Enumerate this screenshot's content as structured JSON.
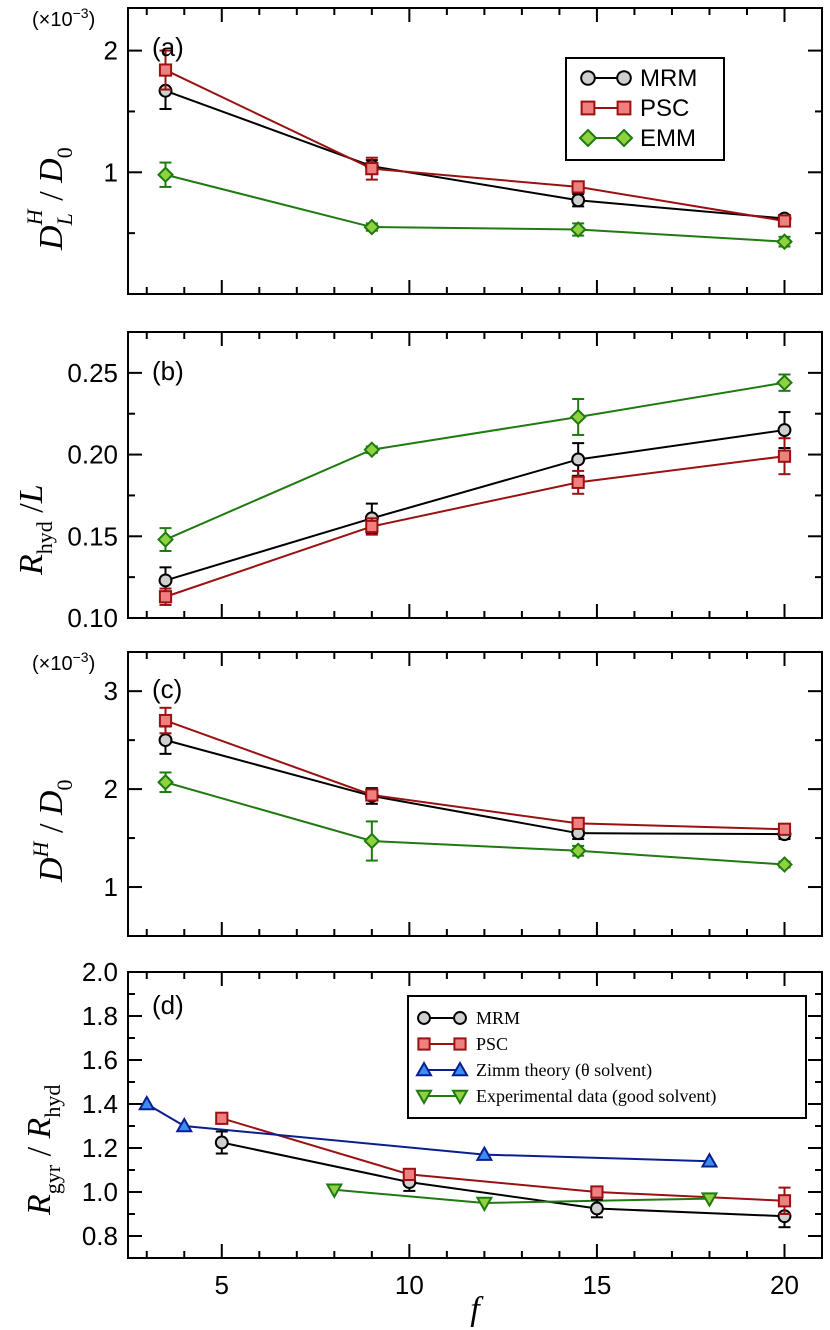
{
  "chart_data": [
    {
      "panel": "(a)",
      "type": "line",
      "ylabel": "D_L^H / D_0",
      "scale_label": "(×10^-3)",
      "xlim": [
        2.5,
        21.0
      ],
      "ylim": [
        0.0,
        2.35
      ],
      "yticks": [
        "1",
        "2"
      ],
      "legend": {
        "position": "top-right",
        "entries": [
          "MRM",
          "PSC",
          "EMM"
        ]
      },
      "series": [
        {
          "name": "MRM",
          "color": "#000000",
          "fill": "#cfcfcf",
          "marker": "circle",
          "x": [
            3.5,
            9,
            14.5,
            20
          ],
          "y": [
            1.67,
            1.05,
            0.77,
            0.62
          ],
          "err": [
            0.15,
            0.05,
            0.05,
            0.03
          ]
        },
        {
          "name": "PSC",
          "color": "#9b1111",
          "fill": "#f08080",
          "marker": "square",
          "x": [
            3.5,
            9,
            14.5,
            20
          ],
          "y": [
            1.84,
            1.03,
            0.88,
            0.6
          ],
          "err": [
            0.16,
            0.09,
            0.04,
            0.03
          ]
        },
        {
          "name": "EMM",
          "color": "#1f7a10",
          "fill": "#8fd13f",
          "marker": "diamond",
          "x": [
            3.5,
            9,
            14.5,
            20
          ],
          "y": [
            0.98,
            0.55,
            0.53,
            0.43
          ],
          "err": [
            0.1,
            0.03,
            0.05,
            0.04
          ]
        }
      ]
    },
    {
      "panel": "(b)",
      "type": "line",
      "ylabel": "R_hyd / L",
      "xlim": [
        2.5,
        21.0
      ],
      "ylim": [
        0.1,
        0.275
      ],
      "yticks": [
        "0.10",
        "0.15",
        "0.20",
        "0.25"
      ],
      "series": [
        {
          "name": "MRM",
          "color": "#000000",
          "fill": "#cfcfcf",
          "marker": "circle",
          "x": [
            3.5,
            9,
            14.5,
            20
          ],
          "y": [
            0.123,
            0.161,
            0.197,
            0.215
          ],
          "err": [
            0.008,
            0.009,
            0.01,
            0.011
          ]
        },
        {
          "name": "PSC",
          "color": "#9b1111",
          "fill": "#f08080",
          "marker": "square",
          "x": [
            3.5,
            9,
            14.5,
            20
          ],
          "y": [
            0.113,
            0.156,
            0.183,
            0.199
          ],
          "err": [
            0.005,
            0.005,
            0.007,
            0.011
          ]
        },
        {
          "name": "EMM",
          "color": "#1f7a10",
          "fill": "#8fd13f",
          "marker": "diamond",
          "x": [
            3.5,
            9,
            14.5,
            20
          ],
          "y": [
            0.148,
            0.203,
            0.223,
            0.244
          ],
          "err": [
            0.007,
            0.002,
            0.011,
            0.005
          ]
        }
      ]
    },
    {
      "panel": "(c)",
      "type": "line",
      "ylabel": "D^H / D_0",
      "scale_label": "(×10^-3)",
      "xlim": [
        2.5,
        21.0
      ],
      "ylim": [
        0.5,
        3.4
      ],
      "yticks": [
        "1",
        "2",
        "3"
      ],
      "series": [
        {
          "name": "MRM",
          "color": "#000000",
          "fill": "#cfcfcf",
          "marker": "circle",
          "x": [
            3.5,
            9,
            14.5,
            20
          ],
          "y": [
            2.5,
            1.93,
            1.55,
            1.54
          ],
          "err": [
            0.14,
            0.08,
            0.06,
            0.05
          ]
        },
        {
          "name": "PSC",
          "color": "#9b1111",
          "fill": "#f08080",
          "marker": "square",
          "x": [
            3.5,
            9,
            14.5,
            20
          ],
          "y": [
            2.7,
            1.94,
            1.65,
            1.59
          ],
          "err": [
            0.13,
            0.05,
            0.03,
            0.03
          ]
        },
        {
          "name": "EMM",
          "color": "#1f7a10",
          "fill": "#8fd13f",
          "marker": "diamond",
          "x": [
            3.5,
            9,
            14.5,
            20
          ],
          "y": [
            2.07,
            1.47,
            1.37,
            1.23
          ],
          "err": [
            0.1,
            0.2,
            0.05,
            0.03
          ]
        }
      ]
    },
    {
      "panel": "(d)",
      "type": "line",
      "ylabel": "R_gyr / R_hyd",
      "xlabel": "f",
      "xlim": [
        2.5,
        21.0
      ],
      "ylim": [
        0.7,
        2.0
      ],
      "xticks": [
        "5",
        "10",
        "15",
        "20"
      ],
      "yticks": [
        "0.8",
        "1.0",
        "1.2",
        "1.4",
        "1.6",
        "1.8",
        "2.0"
      ],
      "legend": {
        "position": "top-right",
        "entries": [
          "MRM",
          "PSC",
          "Zimm theory (θ solvent)",
          "Experimental data (good solvent)"
        ]
      },
      "series": [
        {
          "name": "MRM",
          "color": "#000000",
          "fill": "#cfcfcf",
          "marker": "circle",
          "x": [
            5,
            10,
            15,
            20
          ],
          "y": [
            1.225,
            1.045,
            0.925,
            0.89
          ],
          "err": [
            0.05,
            0.04,
            0.04,
            0.05
          ]
        },
        {
          "name": "PSC",
          "color": "#9b1111",
          "fill": "#f08080",
          "marker": "square",
          "x": [
            5,
            10,
            15,
            20
          ],
          "y": [
            1.335,
            1.08,
            1.0,
            0.96
          ],
          "err": [
            0.02,
            0.02,
            0.015,
            0.06
          ]
        },
        {
          "name": "Zimm theory (θ solvent)",
          "color": "#0a1f8f",
          "fill": "#3b8ef0",
          "marker": "triangle-up",
          "x": [
            3,
            4,
            12,
            18
          ],
          "y": [
            1.4,
            1.3,
            1.17,
            1.14
          ],
          "err": []
        },
        {
          "name": "Experimental data (good solvent)",
          "color": "#1f7a10",
          "fill": "#8fd13f",
          "marker": "triangle-down",
          "x": [
            8,
            12,
            18
          ],
          "y": [
            1.01,
            0.95,
            0.97
          ],
          "err": []
        }
      ]
    }
  ]
}
